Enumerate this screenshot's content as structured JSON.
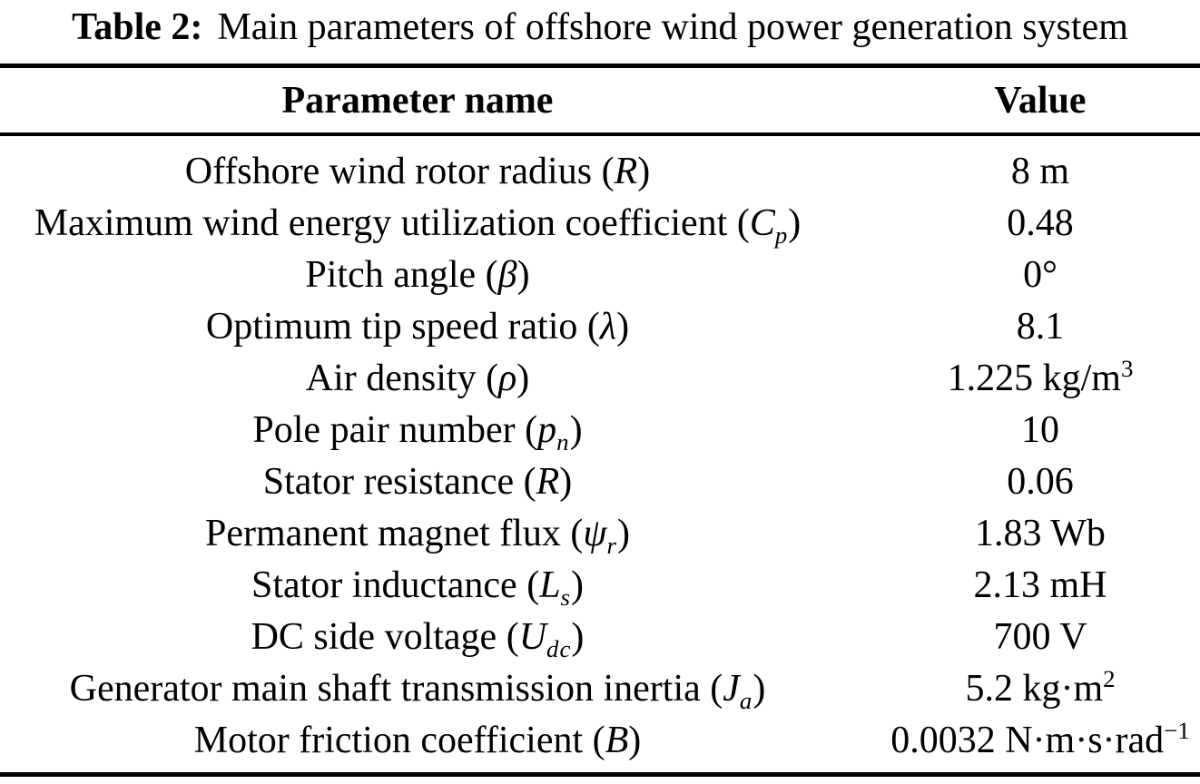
{
  "caption": {
    "label": "Table 2:",
    "text": "Main parameters of offshore wind power generation system"
  },
  "colors": {
    "background": "#ffffff",
    "text": "#000000",
    "rule": "#000000"
  },
  "table": {
    "columns": [
      "Parameter name",
      "Value"
    ],
    "rows": [
      {
        "name": [
          {
            "t": "Offshore wind rotor radius ("
          },
          {
            "t": "R",
            "s": "it"
          },
          {
            "t": ")"
          }
        ],
        "value": [
          {
            "t": "8 m"
          }
        ]
      },
      {
        "name": [
          {
            "t": "Maximum wind energy utilization coefficient ("
          },
          {
            "t": "C",
            "s": "it"
          },
          {
            "t": "p",
            "s": "sb"
          },
          {
            "t": ")"
          }
        ],
        "value": [
          {
            "t": "0.48"
          }
        ]
      },
      {
        "name": [
          {
            "t": "Pitch angle ("
          },
          {
            "t": "β",
            "s": "it"
          },
          {
            "t": ")"
          }
        ],
        "value": [
          {
            "t": "0°"
          }
        ]
      },
      {
        "name": [
          {
            "t": "Optimum tip speed ratio ("
          },
          {
            "t": "λ",
            "s": "it"
          },
          {
            "t": ")"
          }
        ],
        "value": [
          {
            "t": "8.1"
          }
        ]
      },
      {
        "name": [
          {
            "t": "Air density ("
          },
          {
            "t": "ρ",
            "s": "it"
          },
          {
            "t": ")"
          }
        ],
        "value": [
          {
            "t": "1.225 kg/m"
          },
          {
            "t": "3",
            "s": "sp"
          }
        ]
      },
      {
        "name": [
          {
            "t": "Pole pair number ("
          },
          {
            "t": "p",
            "s": "it"
          },
          {
            "t": "n",
            "s": "sb"
          },
          {
            "t": ")"
          }
        ],
        "value": [
          {
            "t": "10"
          }
        ]
      },
      {
        "name": [
          {
            "t": "Stator resistance ("
          },
          {
            "t": "R",
            "s": "it"
          },
          {
            "t": ")"
          }
        ],
        "value": [
          {
            "t": "0.06"
          }
        ]
      },
      {
        "name": [
          {
            "t": "Permanent magnet flux ("
          },
          {
            "t": "ψ",
            "s": "it"
          },
          {
            "t": "r",
            "s": "sb"
          },
          {
            "t": ")"
          }
        ],
        "value": [
          {
            "t": "1.83 Wb"
          }
        ]
      },
      {
        "name": [
          {
            "t": "Stator inductance ("
          },
          {
            "t": "L",
            "s": "it"
          },
          {
            "t": "s",
            "s": "sb"
          },
          {
            "t": ")"
          }
        ],
        "value": [
          {
            "t": "2.13 mH"
          }
        ]
      },
      {
        "name": [
          {
            "t": "DC side voltage ("
          },
          {
            "t": "U",
            "s": "it"
          },
          {
            "t": "dc",
            "s": "sb"
          },
          {
            "t": ")"
          }
        ],
        "value": [
          {
            "t": "700 V"
          }
        ]
      },
      {
        "name": [
          {
            "t": "Generator main shaft transmission inertia ("
          },
          {
            "t": "J",
            "s": "it"
          },
          {
            "t": "a",
            "s": "sb"
          },
          {
            "t": ")"
          }
        ],
        "value": [
          {
            "t": "5.2 kg·m"
          },
          {
            "t": "2",
            "s": "sp"
          }
        ]
      },
      {
        "name": [
          {
            "t": "Motor friction coefficient ("
          },
          {
            "t": "B",
            "s": "it"
          },
          {
            "t": ")"
          }
        ],
        "value": [
          {
            "t": "0.0032 N·m·s·rad"
          },
          {
            "t": "−1",
            "s": "sp"
          }
        ]
      }
    ]
  }
}
